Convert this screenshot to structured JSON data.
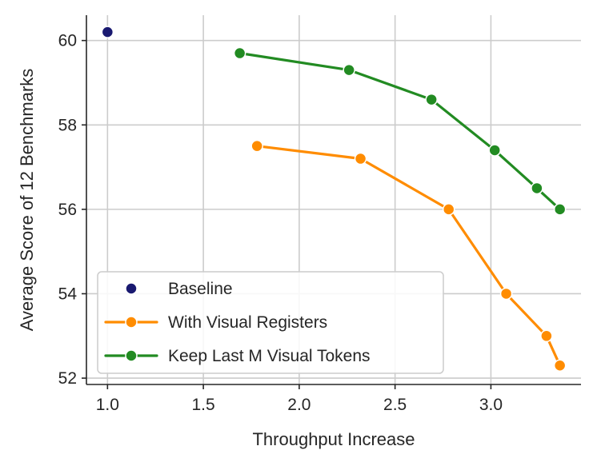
{
  "chart_data": {
    "type": "line",
    "title": "",
    "xlabel": "Throughput Increase",
    "ylabel": "Average Score of 12 Benchmarks",
    "xlim": [
      0.89,
      3.47
    ],
    "ylim": [
      51.85,
      60.6
    ],
    "xticks": [
      1.0,
      1.5,
      2.0,
      2.5,
      3.0
    ],
    "xtick_labels": [
      "1.0",
      "1.5",
      "2.0",
      "2.5",
      "3.0"
    ],
    "yticks": [
      52,
      54,
      56,
      58,
      60
    ],
    "ytick_labels": [
      "52",
      "54",
      "56",
      "58",
      "60"
    ],
    "grid": true,
    "legend_position": "lower-left",
    "series": [
      {
        "name": "Baseline",
        "color": "#191970",
        "mode": "markers",
        "points": [
          [
            1.0,
            60.2
          ]
        ]
      },
      {
        "name": "With Visual Registers",
        "color": "#ff8c00",
        "mode": "lines+markers",
        "points": [
          [
            1.78,
            57.5
          ],
          [
            2.32,
            57.2
          ],
          [
            2.78,
            56.0
          ],
          [
            3.08,
            54.0
          ],
          [
            3.29,
            53.0
          ],
          [
            3.36,
            52.3
          ]
        ]
      },
      {
        "name": "Keep Last M Visual Tokens",
        "color": "#228b22",
        "mode": "lines+markers",
        "points": [
          [
            1.69,
            59.7
          ],
          [
            2.26,
            59.3
          ],
          [
            2.69,
            58.6
          ],
          [
            3.02,
            57.4
          ],
          [
            3.24,
            56.5
          ],
          [
            3.36,
            56.0
          ]
        ]
      }
    ]
  }
}
